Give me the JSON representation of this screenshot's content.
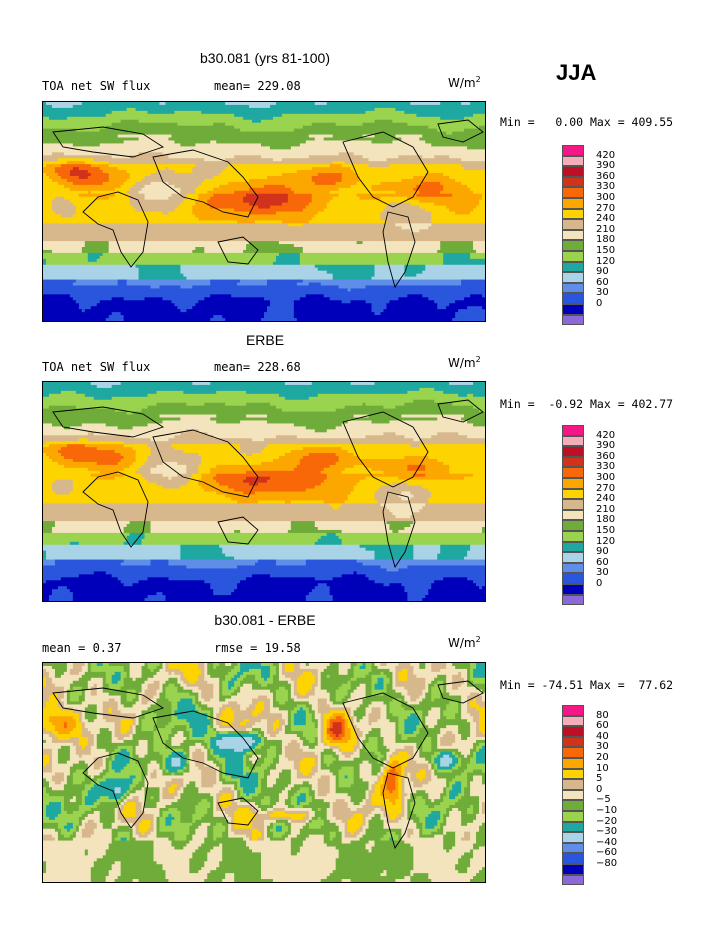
{
  "season": "JJA",
  "unit_base": "W/m",
  "unit_exp": "2",
  "palette_abs": [
    "#8a6ad8",
    "#0000bb",
    "#2a55dd",
    "#5f8ee8",
    "#a9d3e6",
    "#1fa8a2",
    "#9ad44e",
    "#6fac3a",
    "#f3e4bd",
    "#d7b88c",
    "#fdd400",
    "#fca600",
    "#f96808",
    "#d1321c",
    "#bd0f26",
    "#f4aeb9",
    "#f41785"
  ],
  "palette_diff": [
    "#8a6ad8",
    "#0000bb",
    "#2a55dd",
    "#5f8ee8",
    "#a9d3e6",
    "#1fa8a2",
    "#9ad44e",
    "#6fac3a",
    "#f3e4bd",
    "#d7b88c",
    "#fdd400",
    "#fca600",
    "#f96808",
    "#d1321c",
    "#bd0f26",
    "#f4aeb9",
    "#f41785"
  ],
  "panels": [
    {
      "title": "b30.081 (yrs 81-100)",
      "left_label": "TOA net SW flux",
      "right_label": "mean= 229.08",
      "stats": "Min =   0.00 Max = 409.55",
      "colorbar_labels": [
        "420",
        "390",
        "360",
        "330",
        "300",
        "270",
        "240",
        "210",
        "180",
        "150",
        "120",
        "90",
        "60",
        "30",
        "0"
      ]
    },
    {
      "title": "ERBE",
      "left_label": "TOA net SW flux",
      "right_label": "mean= 228.68",
      "stats": "Min =  -0.92 Max = 402.77",
      "colorbar_labels": [
        "420",
        "390",
        "360",
        "330",
        "300",
        "270",
        "240",
        "210",
        "180",
        "150",
        "120",
        "90",
        "60",
        "30",
        "0"
      ]
    },
    {
      "title": "b30.081 - ERBE",
      "left_label": "mean =   0.37",
      "right_label": "rmse =  19.58",
      "stats": "Min = -74.51 Max =  77.62",
      "colorbar_labels": [
        "80",
        "60",
        "40",
        "30",
        "20",
        "10",
        "5",
        "0",
        "−5",
        "−10",
        "−20",
        "−30",
        "−40",
        "−60",
        "−80"
      ]
    }
  ],
  "chart_data": [
    {
      "type": "heatmap",
      "title": "b30.081 (yrs 81-100)",
      "subtitle_left": "TOA net SW flux",
      "subtitle_right": "mean= 229.08",
      "units": "W/m2",
      "min": 0.0,
      "max": 409.55,
      "levels": [
        0,
        30,
        60,
        90,
        120,
        150,
        180,
        210,
        240,
        270,
        300,
        330,
        360,
        390,
        420
      ]
    },
    {
      "type": "heatmap",
      "title": "ERBE",
      "subtitle_left": "TOA net SW flux",
      "subtitle_right": "mean= 228.68",
      "units": "W/m2",
      "min": -0.92,
      "max": 402.77,
      "levels": [
        0,
        30,
        60,
        90,
        120,
        150,
        180,
        210,
        240,
        270,
        300,
        330,
        360,
        390,
        420
      ]
    },
    {
      "type": "heatmap",
      "title": "b30.081 - ERBE",
      "subtitle_left": "mean =   0.37",
      "subtitle_right": "rmse =  19.58",
      "units": "W/m2",
      "min": -74.51,
      "max": 77.62,
      "levels": [
        -80,
        -60,
        -40,
        -30,
        -20,
        -10,
        -5,
        0,
        5,
        10,
        20,
        30,
        40,
        60,
        80
      ]
    }
  ]
}
